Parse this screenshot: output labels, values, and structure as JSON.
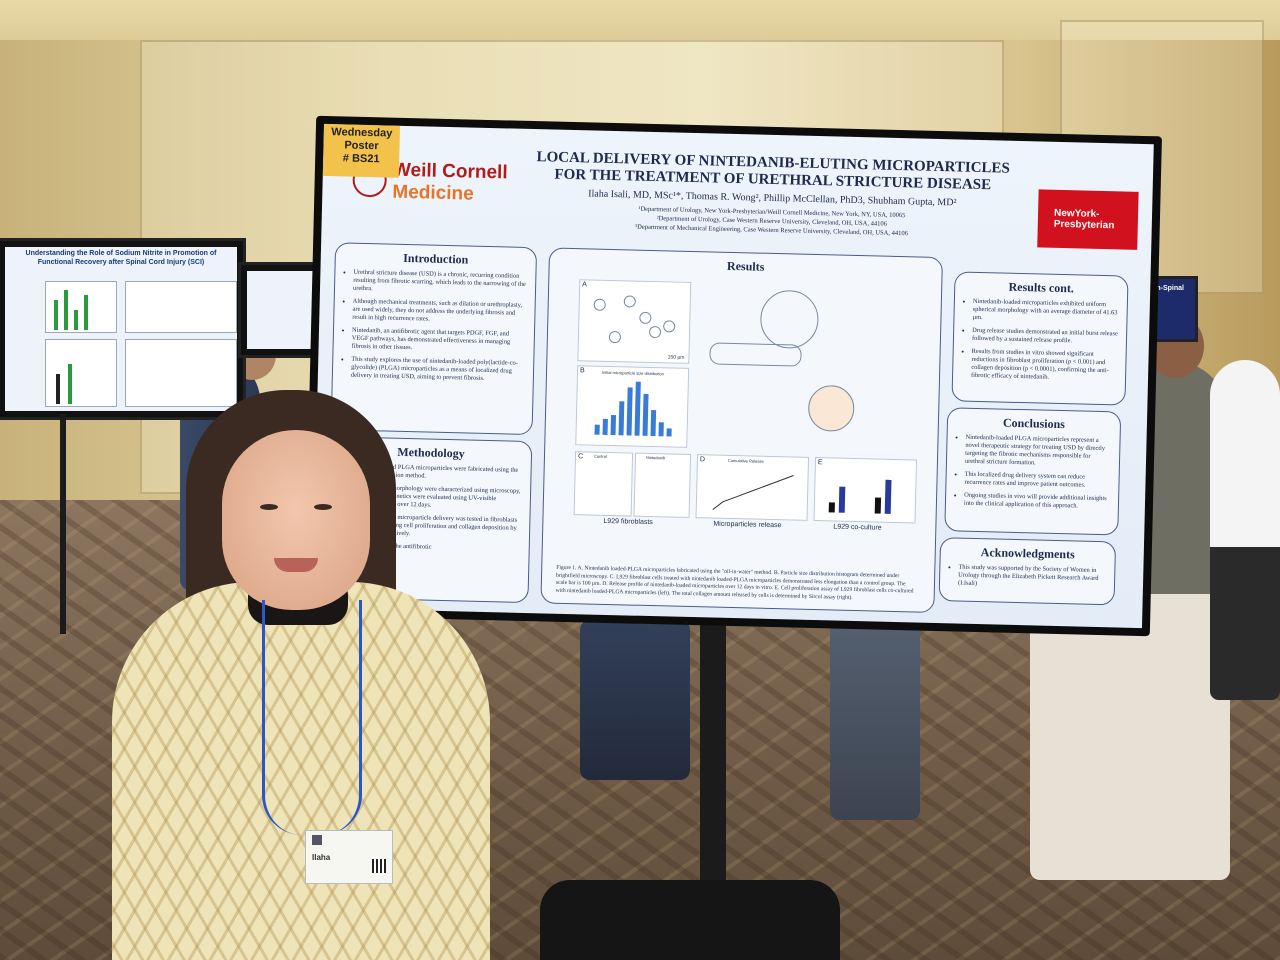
{
  "sticky": {
    "line1": "Wednesday",
    "line2": "Poster",
    "line3": "# BS21"
  },
  "logos": {
    "wcm_line1": "Weill Cornell",
    "wcm_line2": "Medicine",
    "nyp_line1": "NewYork-",
    "nyp_line2": "Presbyterian"
  },
  "poster": {
    "title_line1": "LOCAL DELIVERY OF NINTEDANIB-ELUTING MICROPARTICLES",
    "title_line2": "FOR THE TREATMENT OF URETHRAL STRICTURE DISEASE",
    "authors": "Ilaha Isali, MD, MSc¹*, Thomas R. Wong², Phillip McClellan, PhD3, Shubham Gupta, MD²",
    "affiliation1": "¹Department of Urology, New York-Presbyterian/Weill Cornell Medicine, New York, NY, USA, 10065",
    "affiliation2": "²Department of Urology, Case Western Reserve University, Cleveland, OH, USA, 44106",
    "affiliation3": "³Department of Mechanical Engineering, Case Western Reserve University, Cleveland, OH, USA, 44106",
    "introduction": {
      "heading": "Introduction",
      "items": [
        "Urethral stricture disease (USD) is a chronic, recurring condition resulting from fibrotic scarring, which leads to the narrowing of the urethra.",
        "Although mechanical treatments, such as dilation or urethroplasty, are used widely, they do not address the underlying fibrosis and result in high recurrence rates.",
        "Nintedanib, an antifibrotic agent that targets PDGF, FGF, and VEGF pathways, has demonstrated effectiveness in managing fibrosis in other tissues.",
        "This study explores the use of nintedanib-loaded poly(lactide-co-glycolide) (PLGA) microparticles as a means of localized drug delivery in treating USD, aiming to prevent fibrosis."
      ]
    },
    "methodology": {
      "heading": "Methodology",
      "items": [
        "Nintedanib-loaded PLGA microparticles were fabricated using the oil-in-water emulsion method.",
        "Particle size and morphology were characterized using microscopy, and drug release kinetics were evaluated using UV-visible spectrophotometry over 12 days.",
        "The efficacy of the microparticle delivery was tested in fibroblasts in vitro by measuring cell proliferation and collagen deposition by means of ... respectively.",
        "... a rat urethral ... the antifibrotic"
      ]
    },
    "results": {
      "heading": "Results",
      "panel_labels": [
        "A",
        "B",
        "C",
        "D",
        "E"
      ],
      "scale_bar": "150 µm",
      "hist_title": "Initial microparticle size distribution",
      "control_label": "Control",
      "nintedanib_label": "Nintedanib",
      "cumulative_title": "Cumulative Release",
      "bottom_labels": [
        "L929 fibroblasts",
        "Microparticles release",
        "L929 co-culture"
      ],
      "caption": "Figure 1. A. Nintedanib loaded-PLGA microparticles fabricated using the \"oil-in-water\" method. B. Particle size distribution histogram determined under brightfield microscopy. C. L929 fibroblast cells treated with nintedanib loaded-PLGA microparticles demonstrated less elongation than a control group. The scale bar is 100 µm. D. Release profile of nintedanib-loaded microparticles over 12 days in vitro. E. Cell proliferation assay of L929 fibroblast cells co-cultured with nintedanib loaded-PLGA microparticles (left). The total collagen amount released by cells is determined by Sircol assay (right)."
    },
    "results_cont": {
      "heading": "Results cont.",
      "items": [
        "Nintedanib-loaded microparticles exhibited uniform spherical morphology with an average diameter of 41.63 µm.",
        "Drug release studies demonstrated an initial burst release followed by a sustained release profile.",
        "Results from studies in vitro showed significant reductions in fibroblast proliferation (p < 0.001) and collagen deposition (p < 0.0001), confirming the anti-fibrotic efficacy of nintedanib."
      ]
    },
    "conclusions": {
      "heading": "Conclusions",
      "items": [
        "Nintedanib-loaded PLGA microparticles represent a novel therapeutic strategy for treating USD by directly targeting the fibrotic mechanisms responsible for urethral stricture formation.",
        "This localized drug delivery system can reduce recurrence rates and improve patient outcomes.",
        "Ongoing studies in vivo will provide additional insights into the clinical application of this approach."
      ]
    },
    "acknowledgments": {
      "heading": "Acknowledgments",
      "text": "This study was supported by the Society of Women in Urology through the Elizabeth Pickett Research Award (I.Isali)"
    }
  },
  "badge": {
    "name": "Ilaha"
  },
  "side_poster_left": {
    "title": "Understanding the Role of Sodium Nitrite in Promotion of Functional Recovery after Spinal Cord Injury (SCI)"
  },
  "side_poster_right": {
    "title": "Non-Spinal"
  }
}
